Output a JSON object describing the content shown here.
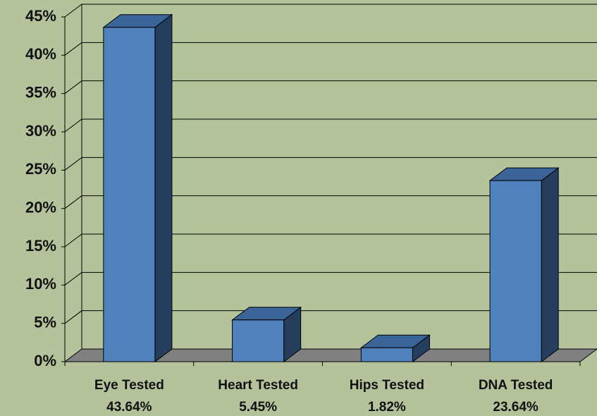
{
  "chart_data": {
    "type": "bar3d",
    "categories": [
      "Eye Tested",
      "Heart Tested",
      "Hips Tested",
      "DNA Tested"
    ],
    "values": [
      43.64,
      5.45,
      1.82,
      23.64
    ],
    "value_labels": [
      "43.64%",
      "5.45%",
      "1.82%",
      "23.64%"
    ],
    "color": "#4f81bd",
    "ylim": [
      0,
      45
    ],
    "yticks": [
      {
        "value": 0,
        "label": "0%"
      },
      {
        "value": 5,
        "label": "5%"
      },
      {
        "value": 10,
        "label": "10%"
      },
      {
        "value": 15,
        "label": "15%"
      },
      {
        "value": 20,
        "label": "20%"
      },
      {
        "value": 25,
        "label": "25%"
      },
      {
        "value": 30,
        "label": "30%"
      },
      {
        "value": 35,
        "label": "35%"
      },
      {
        "value": 40,
        "label": "40%"
      },
      {
        "value": 45,
        "label": "45%"
      }
    ],
    "grid": true
  }
}
